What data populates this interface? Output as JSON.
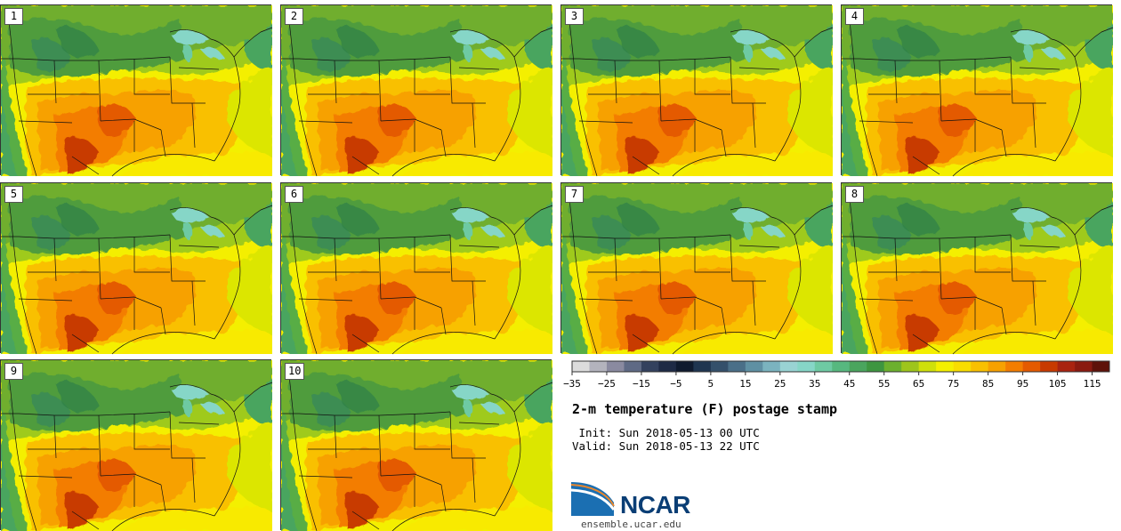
{
  "panels": [
    "1",
    "2",
    "3",
    "4",
    "5",
    "6",
    "7",
    "8",
    "9",
    "10"
  ],
  "colorbar": {
    "colors": [
      "#dcdcdc",
      "#b3b3bd",
      "#8a8aa0",
      "#5f6a85",
      "#33415e",
      "#1e2a45",
      "#0f1a2e",
      "#1f3550",
      "#34506b",
      "#4a6f88",
      "#5f90a3",
      "#7bb3bf",
      "#99d3d3",
      "#86d6c7",
      "#6ecaa3",
      "#57b87f",
      "#4aa55e",
      "#3e9640",
      "#6cb02e",
      "#9ec51c",
      "#cfe00b",
      "#f4f000",
      "#f8dd00",
      "#f9c000",
      "#f7a100",
      "#f37d00",
      "#e45a00",
      "#c83a00",
      "#a92310",
      "#8a1a10",
      "#5e120a"
    ],
    "tick_labels": [
      "−35",
      "−25",
      "−15",
      "−5",
      "5",
      "15",
      "25",
      "35",
      "45",
      "55",
      "65",
      "75",
      "85",
      "95",
      "105",
      "115"
    ],
    "min": -40,
    "max": 120,
    "step": 5
  },
  "title": "2-m temperature (F) postage stamp",
  "init_line": " Init: Sun 2018-05-13 00 UTC",
  "valid_line": "Valid: Sun 2018-05-13 22 UTC",
  "logo": {
    "text": "NCAR",
    "site": "ensemble.ucar.edu"
  }
}
